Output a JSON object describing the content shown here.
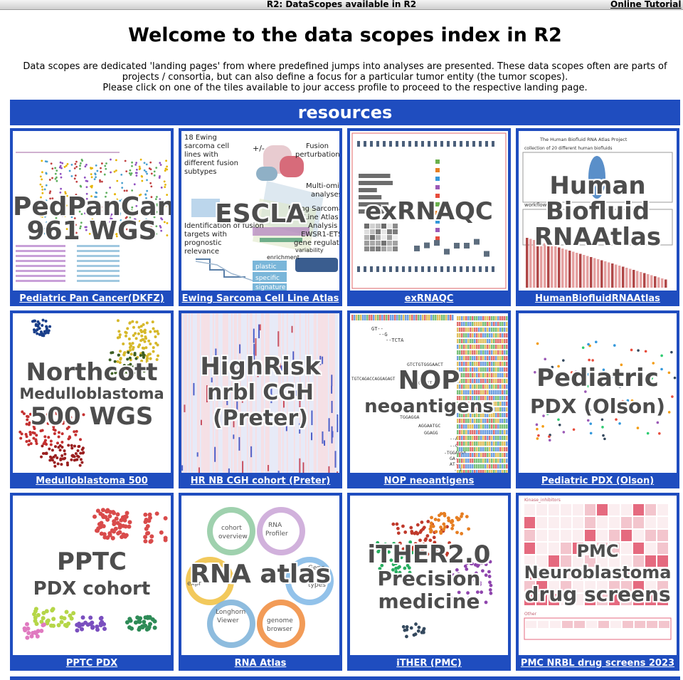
{
  "top_bar": {
    "title": "R2: DataScopes available in R2",
    "tutorial_link": "Online Tutorial"
  },
  "heading": "Welcome to the data scopes index in R2",
  "intro": {
    "line1": "Data scopes are dedicated 'landing pages' from where predefined jumps into analyses are presented. These data scopes often are parts of",
    "line2": "projects / consortia, but can also define a focus for a particular tumor entity (the tumor scopes).",
    "line3": "Please click on one of the tiles available to jour access profile to proceed to the respective landing page."
  },
  "section_title": "resources",
  "colors": {
    "brand_blue": "#1f4dbf",
    "overlay_text": "#4d4d4d"
  },
  "tiles": [
    {
      "overlay": [
        "PedPanCan",
        "961 WGS"
      ],
      "caption": "Pediatric Pan Cancer(DKFZ)",
      "art": "dotplot"
    },
    {
      "overlay": [
        "ESCLA"
      ],
      "caption": "Ewing Sarcoma Cell Line Atlas",
      "art": "infographic",
      "art_text": [
        "18 Ewing",
        "sarcoma cell",
        "lines with",
        "different fusion",
        "subtypes",
        "Fusion",
        "perturbation",
        "Multi-omics",
        "analyses",
        "Ewing Sarcoma",
        "Cell Line Atlas",
        "Identification of fusion",
        "targets with",
        "prognostic",
        "relevance",
        "Analysis of",
        "EWSR1-ETS",
        "gene regulation",
        "variability",
        "enrichment",
        "plastic",
        "specific",
        "signature",
        "+/-"
      ]
    },
    {
      "overlay": [
        "exRNAQC"
      ],
      "caption": "exRNAQC",
      "art": "figure"
    },
    {
      "overlay": [
        "Human",
        "Biofluid",
        "RNAAtlas"
      ],
      "caption": "HumanBiofluidRNAAtlas",
      "art": "biofluid",
      "art_text": [
        "The Human Biofluid RNA Atlas Project",
        "collection of 20 different human biofluids",
        "workflow"
      ]
    },
    {
      "overlay": [
        "Northcott",
        "Medulloblastoma",
        "500 WGS"
      ],
      "caption": "Medulloblastoma 500",
      "art": "clusters"
    },
    {
      "overlay": [
        "HighRisk",
        "nrbl CGH",
        "(Preter)"
      ],
      "caption": "HR NB CGH cohort (Preter)",
      "art": "heatmap"
    },
    {
      "overlay": [
        "NOP",
        "neoantigens"
      ],
      "caption": "NOP neoantigens",
      "art": "sequence",
      "art_text": [
        "GT--",
        "--G",
        "--TCTA",
        "GTCTGTGGGAACT",
        "TGTCAGACCAGGAGAGT",
        "GGGAGT",
        "TGGAGGA",
        "AGGAATGC",
        "GGAGG",
        "--A",
        "--C",
        "-TGGAGGA",
        "GA--",
        "AT--",
        "--T"
      ]
    },
    {
      "overlay": [
        "Pediatric",
        "PDX (Olson)"
      ],
      "caption": "Pediatric PDX (Olson)",
      "art": "scatter_small"
    },
    {
      "overlay": [
        "PPTC",
        "PDX cohort"
      ],
      "caption": "PPTC PDX",
      "art": "clusters_red"
    },
    {
      "overlay": [
        "RNA atlas"
      ],
      "caption": "RNA Atlas",
      "art": "flower",
      "art_text": [
        "cohort",
        "overview",
        "RNA",
        "Profiler",
        "Longhorn",
        "Viewer",
        "genome",
        "browser",
        "expr",
        "Gene",
        "types"
      ]
    },
    {
      "overlay": [
        "iTHER2.0",
        "Precision",
        "medicine"
      ],
      "caption": "iTHER (PMC)",
      "art": "scatter_color"
    },
    {
      "overlay": [
        "PMC",
        "Neuroblastoma",
        "drug screens"
      ],
      "caption": "PMC NRBL drug screens 2023",
      "art": "drug_heatmap",
      "art_text": [
        "Kinase_inhibitors",
        "Other"
      ]
    }
  ]
}
